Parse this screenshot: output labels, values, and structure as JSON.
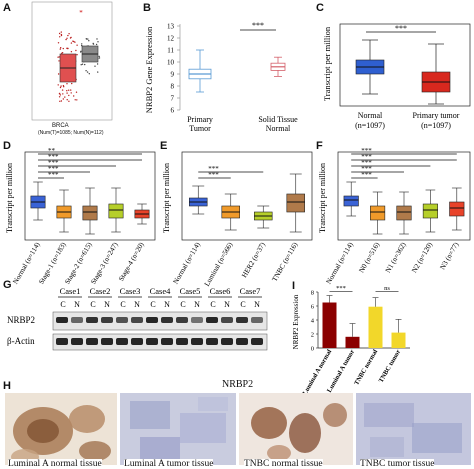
{
  "panels": {
    "A": {
      "label": "A",
      "title": "BRCA",
      "sample_note": "(Num(T)=1085; Num(N)=112)"
    },
    "B": {
      "label": "B",
      "ylabel": "NRBP2 Gene Expression",
      "sig": "***",
      "yticks": [
        "6",
        "7",
        "8",
        "9",
        "10",
        "11",
        "12",
        "13"
      ],
      "groups": [
        "Primary Tumor",
        "Solid Tissue Normal"
      ]
    },
    "C": {
      "label": "C",
      "ylabel": "Transcript per million",
      "sig": "***",
      "groups": [
        "Normal (n=1097)",
        "Primary tumor (n=1097)"
      ],
      "group_lines": [
        [
          "Normal",
          "(n=1097)"
        ],
        [
          "Primary tumor",
          "(n=1097)"
        ]
      ]
    },
    "D": {
      "label": "D",
      "ylabel": "Transcript per million",
      "sigs": [
        "***",
        "***",
        "***",
        "***",
        "**"
      ],
      "groups": [
        "Normal (n=114)",
        "Stage-1 (n=183)",
        "Stage-2 (n=615)",
        "Stage-3 (n=247)",
        "Stage-4 (n=20)"
      ]
    },
    "E": {
      "label": "E",
      "ylabel": "Transcript per million",
      "sigs": [
        "***",
        "***"
      ],
      "groups": [
        "Normal (n=114)",
        "Luminal (n=566)",
        "HER2 (n=37)",
        "TNBC (n=116)"
      ]
    },
    "F": {
      "label": "F",
      "ylabel": "Transcript per million",
      "sigs": [
        "***",
        "***",
        "***",
        "***",
        "***"
      ],
      "groups": [
        "Normal (n=114)",
        "N0 (n=516)",
        "N1 (n=362)",
        "N2 (n=120)",
        "N3 (n=77)"
      ]
    },
    "G": {
      "label": "G",
      "cases": [
        "Case1",
        "Case2",
        "Case3",
        "Case4",
        "Case5",
        "Case6",
        "Case7"
      ],
      "lanes": [
        "C",
        "N"
      ],
      "rows": [
        "NRBP2",
        "β-Actin"
      ]
    },
    "H": {
      "label": "H",
      "title": "NRBP2",
      "tissues": [
        "Luminal A normal tissue",
        "Luminal A tumor tissue",
        "TNBC normal tissue",
        "TNBC tumor tissue"
      ]
    },
    "I": {
      "label": "I",
      "ylabel": "NRBP2 Expression",
      "yticks": [
        "0",
        "2",
        "4",
        "6",
        "8"
      ],
      "sig1": "***",
      "sig2": "ns",
      "bars": [
        "Luminal A normal",
        "Luminal A tumor",
        "TNBC normal",
        "TNBC tumor"
      ]
    }
  },
  "chart_data": [
    {
      "panel": "B",
      "type": "box",
      "categories": [
        "Primary Tumor",
        "Solid Tissue Normal"
      ],
      "ylim": [
        6,
        13
      ],
      "ylabel": "NRBP2 Gene Expression",
      "boxes": [
        {
          "min": 7.5,
          "q1": 8.6,
          "median": 9.0,
          "q3": 9.4,
          "max": 11.0
        },
        {
          "min": 8.8,
          "q1": 9.3,
          "median": 9.6,
          "q3": 9.9,
          "max": 10.4
        }
      ]
    },
    {
      "panel": "I",
      "type": "bar",
      "ylabel": "NRBP2 Expression",
      "ylim": [
        0,
        8
      ],
      "categories": [
        "Luminal A normal",
        "Luminal A tumor",
        "TNBC normal",
        "TNBC tumor"
      ],
      "values": [
        6.5,
        1.6,
        5.9,
        2.2
      ],
      "errors": [
        1.0,
        1.9,
        1.3,
        1.9
      ],
      "colors": [
        "#8b0000",
        "#8b0000",
        "#f2d72a",
        "#f2d72a"
      ]
    }
  ]
}
